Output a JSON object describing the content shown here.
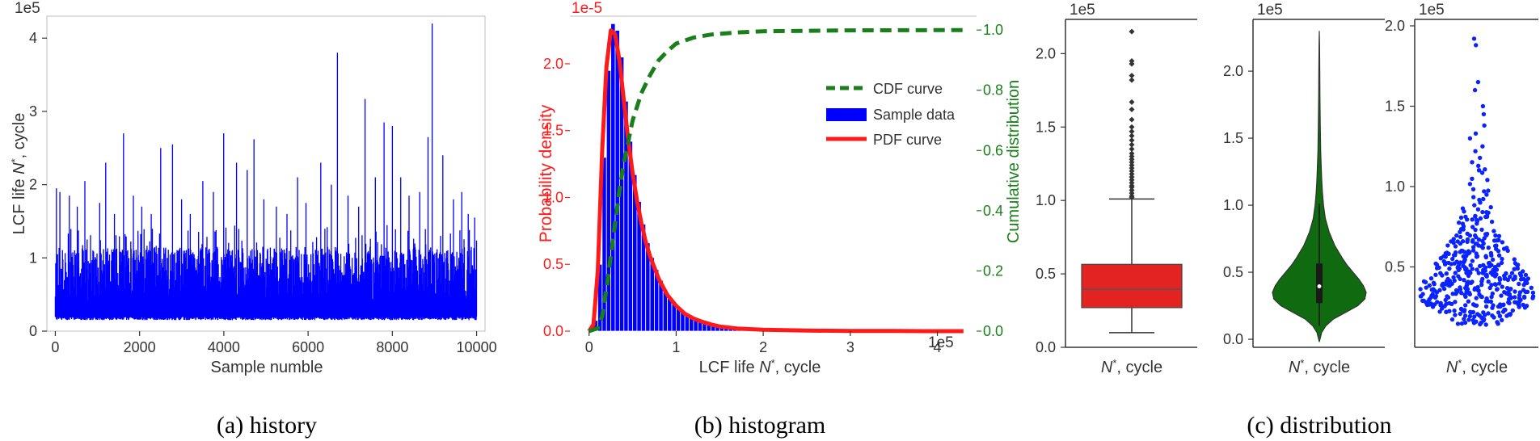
{
  "captions": {
    "a": "(a) history",
    "b": "(b) histogram",
    "c": "(c) distribution"
  },
  "colors": {
    "history": "#0000ff",
    "histogram": "#0000ff",
    "pdf": "#ff1a1a",
    "cdf": "#1a7f1a",
    "box": "#e32222",
    "violin": "#106b10",
    "swarm": "#0b24ff"
  },
  "chart_data": [
    {
      "id": "history",
      "type": "line",
      "xlabel": "Sample numble",
      "ylabel_pre": "LCF life ",
      "ylabel_sym": "N",
      "ylabel_sup": "*",
      "ylabel_post": ", cycle",
      "yscale_label": "1e5",
      "xlim": [
        -200,
        10200
      ],
      "ylim": [
        0,
        4.3
      ],
      "xticks": [
        0,
        2000,
        4000,
        6000,
        8000,
        10000
      ],
      "yticks": [
        0,
        1,
        2,
        3,
        4
      ],
      "baseline_band": [
        0.15,
        1.25
      ],
      "n_samples": 10000,
      "peaks": [
        [
          30,
          1.95
        ],
        [
          110,
          1.9
        ],
        [
          330,
          1.85
        ],
        [
          520,
          1.7
        ],
        [
          700,
          2.05
        ],
        [
          1050,
          1.75
        ],
        [
          1200,
          2.3
        ],
        [
          1400,
          1.6
        ],
        [
          1620,
          2.7
        ],
        [
          1850,
          1.85
        ],
        [
          2050,
          1.7
        ],
        [
          2280,
          1.6
        ],
        [
          2500,
          2.5
        ],
        [
          2780,
          2.55
        ],
        [
          3000,
          1.8
        ],
        [
          3200,
          1.6
        ],
        [
          3500,
          2.05
        ],
        [
          3750,
          1.9
        ],
        [
          4000,
          2.7
        ],
        [
          4300,
          2.3
        ],
        [
          4550,
          2.2
        ],
        [
          4720,
          2.62
        ],
        [
          4950,
          1.8
        ],
        [
          5250,
          1.7
        ],
        [
          5500,
          1.6
        ],
        [
          5750,
          2.1
        ],
        [
          5950,
          1.75
        ],
        [
          6300,
          2.3
        ],
        [
          6550,
          2.0
        ],
        [
          6700,
          3.8
        ],
        [
          6950,
          1.85
        ],
        [
          7200,
          1.7
        ],
        [
          7350,
          3.17
        ],
        [
          7600,
          2.1
        ],
        [
          7800,
          2.85
        ],
        [
          8000,
          2.8
        ],
        [
          8200,
          2.1
        ],
        [
          8400,
          1.85
        ],
        [
          8650,
          1.9
        ],
        [
          8850,
          2.65
        ],
        [
          8950,
          4.2
        ],
        [
          9200,
          2.4
        ],
        [
          9450,
          1.8
        ],
        [
          9650,
          1.9
        ],
        [
          9800,
          1.6
        ],
        [
          9950,
          1.55
        ]
      ]
    },
    {
      "id": "histogram",
      "type": "bar",
      "xlabel_pre": "LCF life ",
      "xlabel_sym": "N",
      "xlabel_sup": "*",
      "xlabel_post": ", cycle",
      "ylabel_left": "Probability density",
      "ylabel_right": "Cumulative distribution",
      "xscale_label": "1e5",
      "yscale_label": "1e-5",
      "xlim": [
        -0.22,
        4.45
      ],
      "ylim": [
        0,
        2.32
      ],
      "y2lim": [
        0,
        1.03
      ],
      "xticks": [
        0,
        1,
        2,
        3,
        4
      ],
      "yticks": [
        0.0,
        0.5,
        1.0,
        1.5,
        2.0
      ],
      "y2ticks": [
        0.0,
        0.2,
        0.4,
        0.6,
        0.8,
        1.0
      ],
      "bin_width": 0.05,
      "bins_x": [
        0.0,
        0.05,
        0.1,
        0.15,
        0.2,
        0.25,
        0.3,
        0.35,
        0.4,
        0.45,
        0.5,
        0.55,
        0.6,
        0.65,
        0.7,
        0.75,
        0.8,
        0.85,
        0.9,
        0.95,
        1.0,
        1.05,
        1.1,
        1.15,
        1.2,
        1.25,
        1.3,
        1.35,
        1.4,
        1.45,
        1.5,
        1.55,
        1.6,
        1.65,
        1.7,
        1.75,
        1.8
      ],
      "bins_y": [
        0.01,
        0.08,
        0.5,
        1.3,
        1.95,
        2.3,
        2.25,
        2.05,
        1.72,
        1.42,
        1.17,
        0.97,
        0.8,
        0.66,
        0.55,
        0.46,
        0.38,
        0.31,
        0.26,
        0.21,
        0.17,
        0.14,
        0.12,
        0.1,
        0.08,
        0.07,
        0.06,
        0.05,
        0.04,
        0.035,
        0.03,
        0.025,
        0.02,
        0.015,
        0.012,
        0.01,
        0.008
      ],
      "pdf_x": [
        0.0,
        0.05,
        0.1,
        0.15,
        0.2,
        0.25,
        0.3,
        0.35,
        0.4,
        0.45,
        0.5,
        0.55,
        0.6,
        0.65,
        0.7,
        0.8,
        0.9,
        1.0,
        1.1,
        1.2,
        1.3,
        1.4,
        1.5,
        1.7,
        2.0,
        2.5,
        3.0,
        3.5,
        4.0,
        4.3
      ],
      "pdf_y": [
        0.0,
        0.05,
        0.45,
        1.35,
        1.98,
        2.25,
        2.22,
        2.02,
        1.72,
        1.43,
        1.18,
        0.98,
        0.81,
        0.67,
        0.56,
        0.39,
        0.27,
        0.19,
        0.13,
        0.095,
        0.07,
        0.05,
        0.035,
        0.02,
        0.01,
        0.004,
        0.002,
        0.001,
        0.0,
        0.0
      ],
      "cdf_x": [
        0.0,
        0.1,
        0.15,
        0.2,
        0.25,
        0.3,
        0.35,
        0.4,
        0.5,
        0.6,
        0.7,
        0.8,
        0.9,
        1.0,
        1.2,
        1.4,
        1.7,
        2.0,
        3.0,
        4.3
      ],
      "cdf_y": [
        0.0,
        0.01,
        0.05,
        0.14,
        0.25,
        0.36,
        0.47,
        0.56,
        0.7,
        0.79,
        0.85,
        0.9,
        0.93,
        0.955,
        0.975,
        0.985,
        0.992,
        0.996,
        0.999,
        1.0
      ],
      "legend": [
        "CDF curve",
        "Sample data",
        "PDF curve"
      ],
      "legend_position": "upper-right"
    },
    {
      "id": "box",
      "type": "box",
      "xlabel_sym": "N",
      "xlabel_sup": "*",
      "xlabel_post": ", cycle",
      "yscale_label": "1e5",
      "ylim": [
        0,
        2.2
      ],
      "yticks": [
        0.0,
        0.5,
        1.0,
        1.5,
        2.0
      ],
      "whisker_low": 0.1,
      "q1": 0.27,
      "median": 0.395,
      "q3": 0.565,
      "whisker_high": 1.01,
      "outliers": [
        1.02,
        1.03,
        1.05,
        1.07,
        1.09,
        1.1,
        1.12,
        1.14,
        1.16,
        1.18,
        1.2,
        1.22,
        1.24,
        1.26,
        1.28,
        1.3,
        1.32,
        1.35,
        1.38,
        1.41,
        1.44,
        1.47,
        1.5,
        1.55,
        1.62,
        1.67,
        1.82,
        1.85,
        1.93,
        1.95,
        2.15
      ]
    },
    {
      "id": "violin",
      "type": "violin",
      "xlabel_sym": "N",
      "xlabel_sup": "*",
      "xlabel_post": ", cycle",
      "yscale_label": "1e5",
      "ylim": [
        -0.06,
        2.35
      ],
      "yticks": [
        0.0,
        0.5,
        1.0,
        1.5,
        2.0
      ],
      "profile_y": [
        -0.02,
        0.05,
        0.1,
        0.15,
        0.2,
        0.25,
        0.3,
        0.35,
        0.4,
        0.45,
        0.5,
        0.55,
        0.6,
        0.7,
        0.8,
        0.9,
        1.0,
        1.1,
        1.2,
        1.4,
        1.6,
        1.8,
        2.0,
        2.2,
        2.3
      ],
      "profile_w": [
        0.0,
        0.05,
        0.14,
        0.3,
        0.56,
        0.82,
        0.97,
        1.0,
        0.94,
        0.84,
        0.72,
        0.6,
        0.5,
        0.33,
        0.21,
        0.13,
        0.09,
        0.065,
        0.05,
        0.03,
        0.02,
        0.014,
        0.01,
        0.006,
        0.0
      ],
      "q1": 0.27,
      "median": 0.395,
      "q3": 0.565,
      "whisker_low": 0.1,
      "whisker_high": 1.01
    },
    {
      "id": "swarm",
      "type": "scatter",
      "xlabel_sym": "N",
      "xlabel_sup": "*",
      "xlabel_post": ", cycle",
      "yscale_label": "1e5",
      "ylim": [
        0.05,
        2.0
      ],
      "yticks": [
        0.5,
        1.0,
        1.5,
        2.0
      ],
      "n_points": 450,
      "extremes": [
        1.92,
        1.88,
        1.65,
        1.6,
        1.5,
        1.45,
        1.38,
        1.33,
        1.3,
        1.25,
        1.22
      ]
    }
  ]
}
